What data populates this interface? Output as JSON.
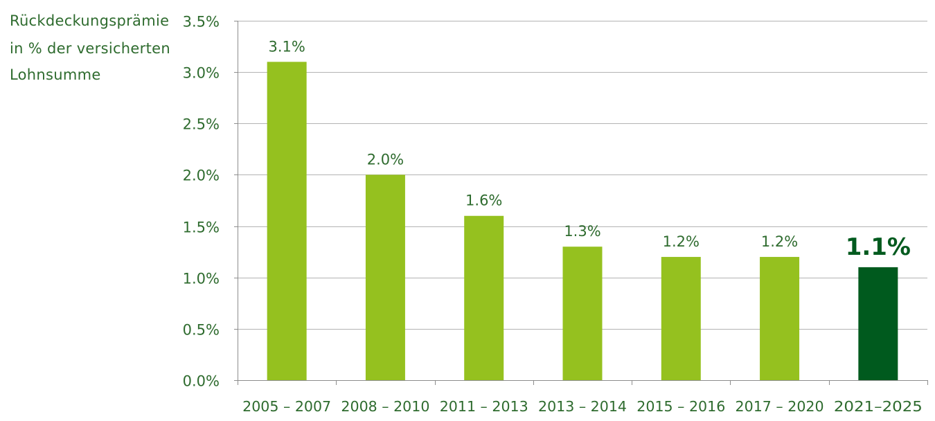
{
  "chart_data": {
    "type": "bar",
    "ylabel_lines": [
      "Rückdeckungsprämie",
      "in % der versicherten",
      "Lohnsumme"
    ],
    "categories": [
      "2005 – 2007",
      "2008 – 2010",
      "2011 – 2013",
      "2013 – 2014",
      "2015 – 2016",
      "2017 – 2020",
      "2021–2025"
    ],
    "values": [
      3.1,
      2.0,
      1.6,
      1.3,
      1.2,
      1.2,
      1.1
    ],
    "value_labels": [
      "3.1%",
      "2.0%",
      "1.6%",
      "1.3%",
      "1.2%",
      "1.2%",
      "1.1%"
    ],
    "highlight_index": 6,
    "ylim": [
      0,
      3.5
    ],
    "y_ticks": [
      0,
      0.5,
      1.0,
      1.5,
      2.0,
      2.5,
      3.0,
      3.5
    ],
    "y_tick_labels": [
      "0.0%",
      "0.5%",
      "1.0%",
      "1.5%",
      "2.0%",
      "2.5%",
      "3.0%",
      "3.5%"
    ],
    "grid": true,
    "colors": {
      "bar": "#95c11f",
      "bar_highlight": "#005a1e",
      "text": "#2e6b2e",
      "highlight_text": "#005a1e",
      "grid": "#b3b3b3"
    }
  }
}
